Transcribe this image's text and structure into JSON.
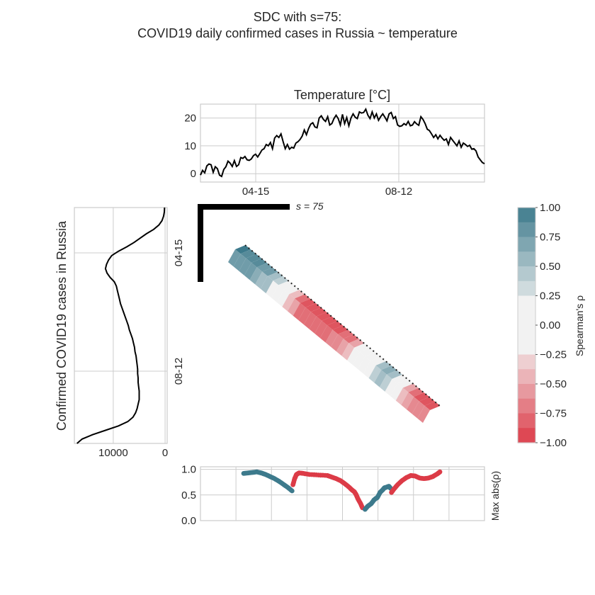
{
  "figure": {
    "title_line1": "SDC with s=75:",
    "title_line2": "COVID19 daily confirmed cases in Russia ~ temperature"
  },
  "chart_data": [
    {
      "type": "line",
      "title": "Temperature [°C]",
      "x_ticks": [
        "04-15",
        "08-12"
      ],
      "y_ticks": [
        "0",
        "10",
        "20"
      ],
      "ylim": [
        -3,
        25
      ],
      "grid": true,
      "series": [
        {
          "values": [
            -0.5,
            1.2,
            0.3,
            2.8,
            3.5,
            3.2,
            0.5,
            2.5,
            1.8,
            -0.5,
            -1,
            1.5,
            2.5,
            4.5,
            3.8,
            2.6,
            4.7,
            2.6,
            3.2,
            5.8,
            5.5,
            6.2,
            5.0,
            4.8,
            5.3,
            6.5,
            7.0,
            6.0,
            7.2,
            8.5,
            9.0,
            10.5,
            10.0,
            11.2,
            9.0,
            12.8,
            13.7,
            13.0,
            14.3,
            11.5,
            9.0,
            10.5,
            8.8,
            9.5,
            9.2,
            11.0,
            11.5,
            12.3,
            13.5,
            15.7,
            14.0,
            16.2,
            17.8,
            18.3,
            16.8,
            16.5,
            20.0,
            20.8,
            19.5,
            18.8,
            20.5,
            17.5,
            18.0,
            19.8,
            21.0,
            19.8,
            17.5,
            21.3,
            18.0,
            20.2,
            17.2,
            20.0,
            21.5,
            20.3,
            19.8,
            22.2,
            21.8,
            22.0,
            23.2,
            21.0,
            19.8,
            22.2,
            20.0,
            21.5,
            19.2,
            20.5,
            21.5,
            20.3,
            19.0,
            21.5,
            22.0,
            19.8,
            20.5,
            17.5,
            17.0,
            17.2,
            18.0,
            17.5,
            18.8,
            17.2,
            17.5,
            18.7,
            17.9,
            17.4,
            20.5,
            19.5,
            18.0,
            16.0,
            15.5,
            14.3,
            13.0,
            14.0,
            12.5,
            13.8,
            12.8,
            12.0,
            12.5,
            10.5,
            13.0,
            12.0,
            11.0,
            10.0,
            11.8,
            9.5,
            11.0,
            10.5,
            9.8,
            10.2,
            8.8,
            9.0,
            8.2,
            6.0,
            5.0,
            4.0,
            3.6
          ],
          "color": "#000000"
        }
      ]
    },
    {
      "type": "line",
      "ylabel": "Confirmed COVID19 cases in Russia",
      "x_ticks": [
        "10000",
        "0"
      ],
      "y_ticks": [
        "04-15",
        "08-12"
      ],
      "orientation": "vertical, time increases downward, axis reversed",
      "grid": true,
      "series": [
        {
          "values": [
            100,
            150,
            300,
            600,
            1200,
            2200,
            3600,
            4800,
            6000,
            7400,
            9000,
            10300,
            10900,
            11300,
            11500,
            11200,
            10600,
            9800,
            9400,
            9200,
            9000,
            8800,
            8600,
            8300,
            8000,
            7700,
            7400,
            7100,
            6900,
            6600,
            6300,
            6100,
            5900,
            5800,
            5600,
            5500,
            5400,
            5300,
            5300,
            5200,
            5200,
            5100,
            5000,
            5000,
            5000,
            5200,
            5400,
            5700,
            6200,
            7200,
            9000,
            11500,
            14000,
            16000,
            17000
          ],
          "color": "#000000"
        }
      ]
    },
    {
      "type": "heatmap",
      "x_ticks": [
        "04-15",
        "08-12"
      ],
      "y_ticks": [
        "04-15",
        "08-12"
      ],
      "window_label": "s = 75",
      "colorbar": {
        "label": "Spearman's ρ",
        "ticks": [
          "1.00",
          "0.75",
          "0.50",
          "0.25",
          "0.00",
          "−0.25",
          "−0.50",
          "−0.75",
          "−1.00"
        ],
        "range": [
          -1,
          1
        ],
        "positive_color": "#3d7a8c",
        "negative_color": "#dc3b47"
      },
      "diagonal_rho": [
        0.95,
        0.93,
        0.9,
        0.87,
        0.8,
        0.7,
        0.55,
        0.35,
        0.15,
        -0.1,
        -0.4,
        -0.7,
        -0.88,
        -0.93,
        -0.93,
        -0.92,
        -0.9,
        -0.88,
        -0.85,
        -0.8,
        -0.7,
        -0.5,
        -0.3,
        -0.1,
        0.1,
        0.3,
        0.5,
        0.6,
        0.5,
        0.2,
        -0.1,
        -0.5,
        -0.7,
        -0.82,
        -0.85,
        -0.85
      ]
    },
    {
      "type": "scatter",
      "ylabel": "Max abs(ρ)",
      "y_ticks": [
        "0.0",
        "0.5",
        "1.0"
      ],
      "ylim": [
        0,
        1.05
      ],
      "grid": true,
      "series": [
        {
          "color": "#3d7a8c",
          "points": [
            [
              0,
              0.92
            ],
            [
              5,
              0.93
            ],
            [
              10,
              0.94
            ],
            [
              15,
              0.95
            ],
            [
              20,
              0.93
            ],
            [
              25,
              0.9
            ],
            [
              30,
              0.86
            ],
            [
              35,
              0.82
            ],
            [
              40,
              0.77
            ],
            [
              45,
              0.71
            ],
            [
              50,
              0.65
            ],
            [
              55,
              0.58
            ]
          ]
        },
        {
          "color": "#dc3b47",
          "points": [
            [
              56,
              0.7
            ],
            [
              58,
              0.82
            ],
            [
              60,
              0.9
            ],
            [
              63,
              0.93
            ],
            [
              68,
              0.92
            ],
            [
              75,
              0.9
            ],
            [
              85,
              0.89
            ],
            [
              95,
              0.88
            ],
            [
              100,
              0.85
            ],
            [
              105,
              0.82
            ],
            [
              110,
              0.78
            ],
            [
              115,
              0.72
            ],
            [
              120,
              0.65
            ],
            [
              123,
              0.6
            ],
            [
              126,
              0.56
            ],
            [
              128,
              0.5
            ],
            [
              130,
              0.42
            ],
            [
              133,
              0.33
            ],
            [
              135,
              0.25
            ]
          ]
        },
        {
          "color": "#3d7a8c",
          "points": [
            [
              138,
              0.22
            ],
            [
              141,
              0.28
            ],
            [
              145,
              0.33
            ],
            [
              148,
              0.4
            ],
            [
              150,
              0.43
            ],
            [
              152,
              0.45
            ],
            [
              155,
              0.55
            ],
            [
              158,
              0.6
            ],
            [
              160,
              0.64
            ],
            [
              162,
              0.65
            ],
            [
              165,
              0.67
            ],
            [
              167,
              0.63
            ]
          ]
        },
        {
          "color": "#dc3b47",
          "points": [
            [
              168,
              0.55
            ],
            [
              171,
              0.62
            ],
            [
              175,
              0.7
            ],
            [
              180,
              0.78
            ],
            [
              185,
              0.84
            ],
            [
              190,
              0.88
            ],
            [
              195,
              0.87
            ],
            [
              200,
              0.83
            ],
            [
              205,
              0.82
            ],
            [
              210,
              0.83
            ],
            [
              215,
              0.86
            ],
            [
              220,
              0.91
            ],
            [
              223,
              0.95
            ]
          ]
        }
      ]
    }
  ]
}
